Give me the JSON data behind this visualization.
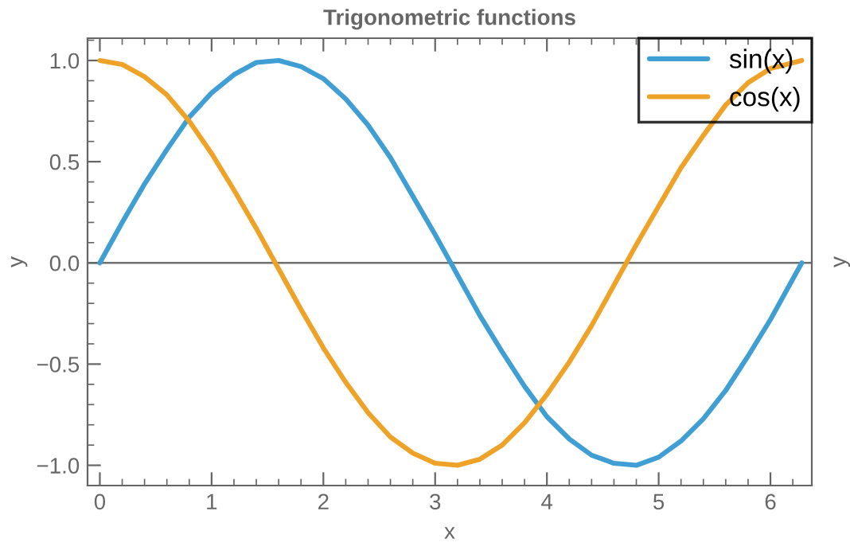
{
  "chart_data": {
    "type": "line",
    "title": "Trigonometric functions",
    "xlabel": "x",
    "ylabel": "y",
    "y2label": "y",
    "x": [
      0,
      0.2,
      0.4,
      0.6,
      0.8,
      1.0,
      1.2,
      1.4,
      1.6,
      1.8,
      2.0,
      2.2,
      2.4,
      2.6,
      2.8,
      3.0,
      3.2,
      3.4,
      3.6,
      3.8,
      4.0,
      4.2,
      4.4,
      4.6,
      4.8,
      5.0,
      5.2,
      5.4,
      5.6,
      5.8,
      6.0,
      6.28
    ],
    "series": [
      {
        "name": "sin(x)",
        "color": "#3f9ed4",
        "values": [
          0,
          0.2,
          0.39,
          0.56,
          0.72,
          0.84,
          0.93,
          0.99,
          1.0,
          0.97,
          0.91,
          0.81,
          0.68,
          0.52,
          0.33,
          0.14,
          -0.06,
          -0.26,
          -0.44,
          -0.61,
          -0.76,
          -0.87,
          -0.95,
          -0.99,
          -1.0,
          -0.96,
          -0.88,
          -0.77,
          -0.63,
          -0.46,
          -0.28,
          0
        ]
      },
      {
        "name": "cos(x)",
        "color": "#eea227",
        "values": [
          1.0,
          0.98,
          0.92,
          0.83,
          0.7,
          0.54,
          0.36,
          0.17,
          -0.03,
          -0.23,
          -0.42,
          -0.59,
          -0.74,
          -0.86,
          -0.94,
          -0.99,
          -1.0,
          -0.97,
          -0.9,
          -0.79,
          -0.65,
          -0.49,
          -0.31,
          -0.11,
          0.09,
          0.28,
          0.47,
          0.63,
          0.78,
          0.89,
          0.96,
          1.0
        ]
      }
    ],
    "xlim": [
      -0.11,
      6.37
    ],
    "ylim": [
      -1.1,
      1.11
    ],
    "xticks": [
      0,
      1,
      2,
      3,
      4,
      5,
      6
    ],
    "yticks": [
      {
        "value": -1.0,
        "label": "−1.0"
      },
      {
        "value": -0.5,
        "label": "−0.5"
      },
      {
        "value": 0.0,
        "label": "0.0"
      },
      {
        "value": 0.5,
        "label": "0.5"
      },
      {
        "value": 1.0,
        "label": "1.0"
      }
    ],
    "ref_lines": [
      {
        "axis": "y",
        "value": 0,
        "color": "#707070"
      }
    ],
    "legend": "top right",
    "grid": false,
    "line_style": "solid",
    "marker": "none",
    "tick_labels": "xy"
  }
}
